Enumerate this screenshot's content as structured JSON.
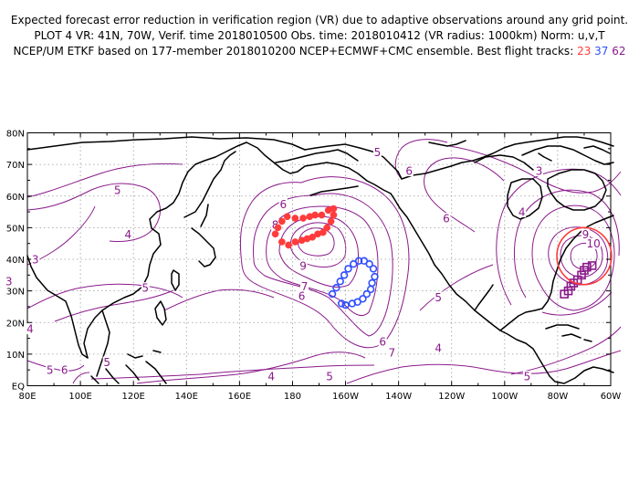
{
  "title": {
    "line1": "Expected forecast error reduction in verification region (VR) due to adaptive observations around any grid point.",
    "line2": "PLOT 4 VR: 41N, 70W, Verif. time 2018010500 Obs. time: 2018010412 (VR radius: 1000km) Norm: u,v,T",
    "line3_prefix": "NCEP/UM ETKF based on 177-member 2018010200 NCEP+ECMWF+CMC ensemble. Best flight tracks:",
    "tracks": [
      "23",
      "37",
      "62"
    ]
  },
  "axes": {
    "lat_labels": [
      "80N",
      "70N",
      "60N",
      "50N",
      "40N",
      "30N",
      "20N",
      "10N",
      "EQ"
    ],
    "lon_labels": [
      "80E",
      "100E",
      "120E",
      "140E",
      "160E",
      "180",
      "160W",
      "140W",
      "120W",
      "100W",
      "80W",
      "60W"
    ]
  },
  "contour_labels": [
    {
      "text": "5",
      "lon": 110,
      "lat": 7.5
    },
    {
      "text": "3",
      "lon": 83,
      "lat": 40
    },
    {
      "text": "4",
      "lon": 118,
      "lat": 48
    },
    {
      "text": "5",
      "lon": 114,
      "lat": 62
    },
    {
      "text": "5",
      "lon": 88.5,
      "lat": 5
    },
    {
      "text": "4",
      "lon": 81,
      "lat": 18
    },
    {
      "text": "5",
      "lon": 124.5,
      "lat": 31
    },
    {
      "text": "3",
      "lon": 73,
      "lat": 33
    },
    {
      "text": "6",
      "lon": 94,
      "lat": 5
    },
    {
      "text": "5",
      "lon": 212,
      "lat": 74
    },
    {
      "text": "6",
      "lon": 176.5,
      "lat": 57.5
    },
    {
      "text": "8",
      "lon": 173.5,
      "lat": 51
    },
    {
      "text": "9",
      "lon": 184,
      "lat": 38
    },
    {
      "text": "7",
      "lon": 184.5,
      "lat": 31.5
    },
    {
      "text": "6",
      "lon": 183.5,
      "lat": 28.5
    },
    {
      "text": "7",
      "lon": 217.5,
      "lat": 10.5
    },
    {
      "text": "6",
      "lon": 214,
      "lat": 14
    },
    {
      "text": "4",
      "lon": 172,
      "lat": 3
    },
    {
      "text": "5",
      "lon": 194,
      "lat": 3
    },
    {
      "text": "6",
      "lon": 224,
      "lat": 68
    },
    {
      "text": "6",
      "lon": 238,
      "lat": 53
    },
    {
      "text": "5",
      "lon": 235,
      "lat": 28
    },
    {
      "text": "4",
      "lon": 235,
      "lat": 12
    },
    {
      "text": "3",
      "lon": 273,
      "lat": 68
    },
    {
      "text": "4",
      "lon": 266.5,
      "lat": 55
    },
    {
      "text": "5",
      "lon": 268.5,
      "lat": 3
    },
    {
      "text": "10",
      "lon": 293.5,
      "lat": 45
    },
    {
      "text": "9",
      "lon": 290.5,
      "lat": 48
    }
  ],
  "flight_tracks": [
    {
      "id": "23",
      "color": "#ff3b3b",
      "marker": "circle-filled",
      "points": [
        [
          173.5,
          48.0
        ],
        [
          174.5,
          50.0
        ],
        [
          176.0,
          52.0
        ],
        [
          178.0,
          53.5
        ],
        [
          181.0,
          53.0
        ],
        [
          184.0,
          53.0
        ],
        [
          186.5,
          53.5
        ],
        [
          188.5,
          54.0
        ],
        [
          191.0,
          54.0
        ],
        [
          193.5,
          55.5
        ],
        [
          195.5,
          56.0
        ],
        [
          195.5,
          54.0
        ],
        [
          194.5,
          52.0
        ],
        [
          193.0,
          50.0
        ],
        [
          191.5,
          48.5
        ],
        [
          189.5,
          48.0
        ],
        [
          187.5,
          47.0
        ],
        [
          185.5,
          46.5
        ],
        [
          183.5,
          46.0
        ],
        [
          181.0,
          45.5
        ],
        [
          178.5,
          44.5
        ],
        [
          176.0,
          45.5
        ]
      ]
    },
    {
      "id": "37",
      "color": "#2f4fff",
      "marker": "circle-open",
      "points": [
        [
          195.0,
          29.0
        ],
        [
          196.5,
          31.0
        ],
        [
          198.0,
          33.0
        ],
        [
          199.5,
          35.0
        ],
        [
          201.0,
          37.0
        ],
        [
          203.0,
          38.5
        ],
        [
          205.0,
          39.5
        ],
        [
          207.0,
          39.5
        ],
        [
          209.0,
          38.5
        ],
        [
          210.5,
          37.0
        ],
        [
          211.0,
          34.5
        ],
        [
          210.0,
          32.5
        ],
        [
          209.5,
          30.5
        ],
        [
          208.0,
          29.0
        ],
        [
          206.5,
          27.5
        ],
        [
          204.5,
          26.5
        ],
        [
          202.5,
          26.0
        ],
        [
          200.0,
          25.5
        ],
        [
          198.5,
          26.0
        ]
      ]
    },
    {
      "id": "62",
      "color": "#8a1a8a",
      "marker": "square-open",
      "points": [
        [
          293.0,
          38.0
        ],
        [
          291.0,
          37.5
        ],
        [
          290.0,
          36.5
        ],
        [
          289.0,
          35.0
        ],
        [
          287.5,
          33.5
        ],
        [
          286.0,
          32.5
        ],
        [
          285.0,
          31.5
        ],
        [
          284.0,
          30.0
        ],
        [
          282.5,
          29.0
        ]
      ]
    }
  ],
  "verification_region": {
    "lat": 41,
    "lon": 290,
    "radius_km": 1000,
    "color": "#ff3b3b"
  },
  "colors": {
    "contour": "#8b1a8b",
    "grid": "#9a9a9a",
    "coast": "#000000"
  }
}
